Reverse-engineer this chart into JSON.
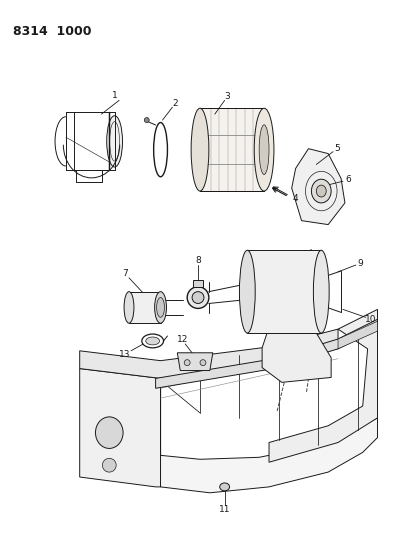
{
  "title": "8314  1000",
  "background_color": "#ffffff",
  "line_color": "#1a1a1a",
  "fig_width": 3.99,
  "fig_height": 5.33,
  "dpi": 100
}
